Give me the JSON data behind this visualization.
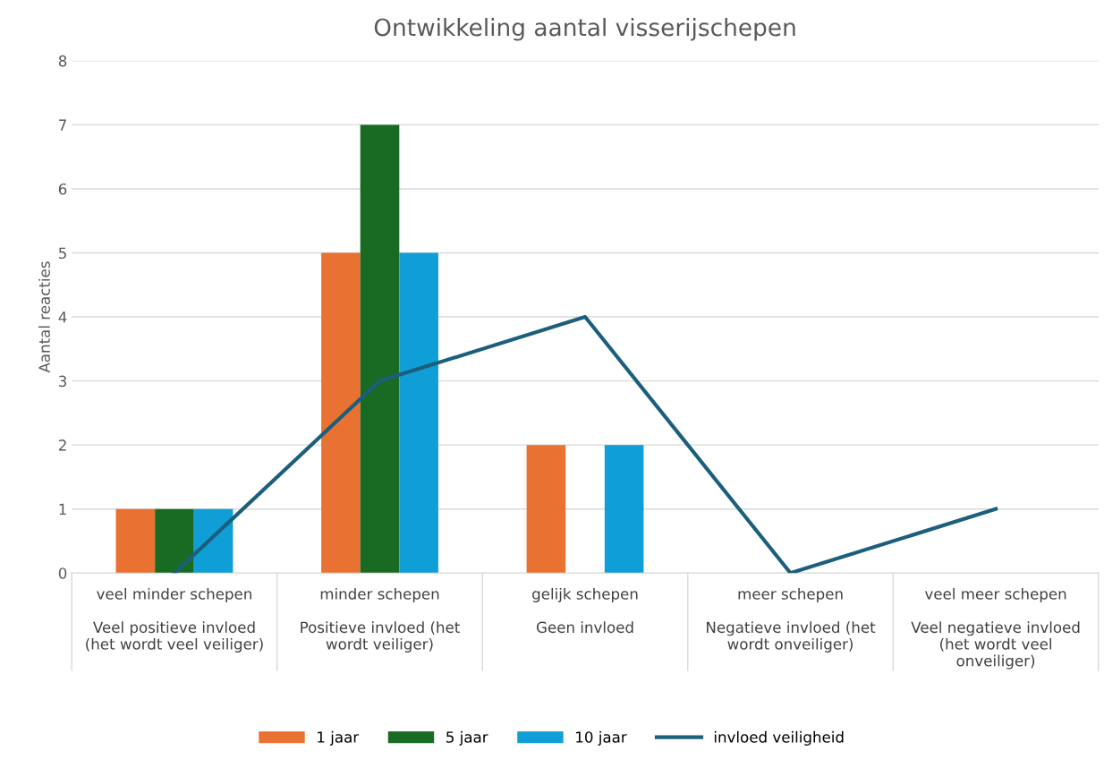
{
  "chart_data": {
    "type": "bar",
    "title": "Ontwikkeling aantal visserijschepen",
    "ylabel": "Aantal reacties",
    "categories": [
      "veel minder schepen\n\nVeel positieve invloed\n(het wordt veel veiliger)",
      "minder schepen\n\nPositieve invloed (het\nwordt veiliger)",
      "gelijk schepen\n\nGeen invloed",
      "meer schepen\n\nNegatieve invloed (het\nwordt onveiliger)",
      "veel meer schepen\n\nVeel negatieve invloed\n(het wordt veel\nonveiliger)"
    ],
    "series": [
      {
        "name": "1 jaar",
        "color": "#e97132",
        "values": [
          1,
          5,
          2,
          0,
          0
        ]
      },
      {
        "name": "5 jaar",
        "color": "#196b24",
        "values": [
          1,
          7,
          0,
          0,
          0
        ]
      },
      {
        "name": "10 jaar",
        "color": "#0f9ed5",
        "values": [
          1,
          5,
          2,
          0,
          0
        ]
      },
      {
        "name": "invloed veiligheid",
        "type": "line",
        "color": "#1b5e7e",
        "values": [
          0,
          3,
          4,
          0,
          1
        ]
      }
    ],
    "ylim": [
      0,
      8
    ],
    "yticks": [
      0,
      1,
      2,
      3,
      4,
      5,
      6,
      7,
      8
    ],
    "grid": "y",
    "legend": "bottom",
    "marker": "none",
    "line_style": "solid"
  }
}
